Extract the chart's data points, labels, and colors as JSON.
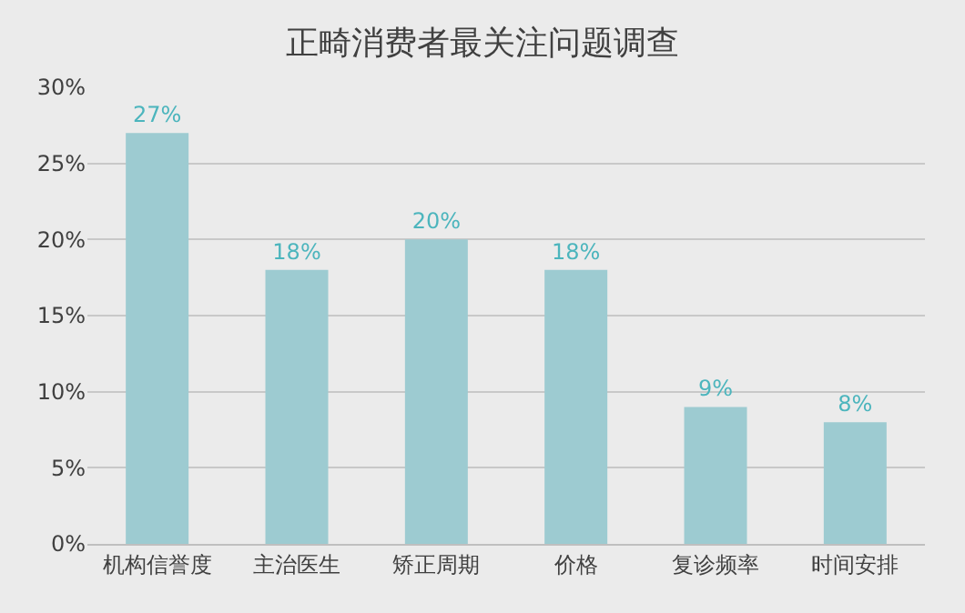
{
  "chart_data": {
    "type": "bar",
    "title": "正畸消费者最关注问题调查",
    "categories": [
      "机构信誉度",
      "主治医生",
      "矫正周期",
      "价格",
      "复诊频率",
      "时间安排"
    ],
    "values": [
      27,
      18,
      20,
      18,
      9,
      8
    ],
    "value_labels": [
      "27%",
      "18%",
      "20%",
      "18%",
      "9%",
      "8%"
    ],
    "color": "#9dcbd1",
    "ylim": [
      0,
      30
    ],
    "yticks": [
      {
        "value": 0,
        "label": "0%"
      },
      {
        "value": 5,
        "label": "5%"
      },
      {
        "value": 10,
        "label": "10%"
      },
      {
        "value": 15,
        "label": "15%"
      },
      {
        "value": 20,
        "label": "20%"
      },
      {
        "value": 25,
        "label": "25%"
      },
      {
        "value": 30,
        "label": "30%"
      }
    ],
    "grid": "y"
  }
}
